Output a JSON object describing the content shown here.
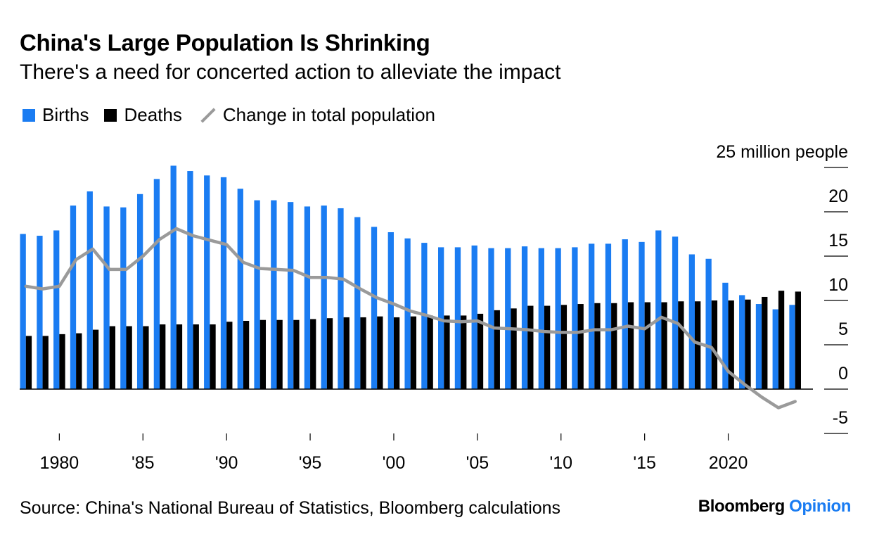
{
  "header": {
    "title": "China's Large Population Is Shrinking",
    "subtitle": "There's a need for concerted action to alleviate the impact"
  },
  "footer": {
    "source": "Source: China's National Bureau of Statistics, Bloomberg calculations",
    "brand_main": "Bloomberg",
    "brand_accent": "Opinion"
  },
  "colors": {
    "births": "#1a7cf2",
    "deaths": "#000000",
    "change": "#9a9a9a"
  },
  "chart_data": {
    "type": "bar",
    "unit_label": "25 million people",
    "ylim": [
      -5,
      25
    ],
    "yticks": [
      -5,
      0,
      5,
      10,
      15,
      20,
      25
    ],
    "ytick_labels": [
      "-5",
      "0",
      "5",
      "10",
      "15",
      "20",
      "25 million people"
    ],
    "xtick_years": [
      1980,
      1985,
      1990,
      1995,
      2000,
      2005,
      2010,
      2015,
      2020
    ],
    "xtick_labels": [
      "1980",
      "'85",
      "'90",
      "'95",
      "'00",
      "'05",
      "'10",
      "'15",
      "2020"
    ],
    "legend": {
      "placement": "top-left"
    },
    "x": [
      1978,
      1979,
      1980,
      1981,
      1982,
      1983,
      1984,
      1985,
      1986,
      1987,
      1988,
      1989,
      1990,
      1991,
      1992,
      1993,
      1994,
      1995,
      1996,
      1997,
      1998,
      1999,
      2000,
      2001,
      2002,
      2003,
      2004,
      2005,
      2006,
      2007,
      2008,
      2009,
      2010,
      2011,
      2012,
      2013,
      2014,
      2015,
      2016,
      2017,
      2018,
      2019,
      2020,
      2021,
      2022,
      2023,
      2024
    ],
    "series": [
      {
        "name": "Births",
        "kind": "bar",
        "values": [
          17.5,
          17.3,
          17.9,
          20.7,
          22.3,
          20.6,
          20.5,
          22.0,
          23.7,
          25.2,
          24.6,
          24.1,
          23.9,
          22.6,
          21.3,
          21.3,
          21.1,
          20.6,
          20.7,
          20.4,
          19.4,
          18.3,
          17.7,
          17.0,
          16.5,
          16.0,
          16.0,
          16.2,
          15.9,
          15.9,
          16.1,
          15.9,
          15.9,
          16.0,
          16.4,
          16.4,
          16.9,
          16.6,
          17.9,
          17.2,
          15.2,
          14.7,
          12.0,
          10.6,
          9.6,
          9.0,
          9.5
        ]
      },
      {
        "name": "Deaths",
        "kind": "bar",
        "values": [
          6.0,
          6.0,
          6.2,
          6.3,
          6.7,
          7.1,
          7.1,
          7.1,
          7.3,
          7.3,
          7.3,
          7.3,
          7.6,
          7.7,
          7.8,
          7.8,
          7.8,
          7.9,
          8.0,
          8.1,
          8.1,
          8.2,
          8.1,
          8.2,
          8.3,
          8.3,
          8.3,
          8.5,
          8.9,
          9.1,
          9.4,
          9.4,
          9.5,
          9.6,
          9.7,
          9.7,
          9.8,
          9.8,
          9.8,
          9.9,
          9.9,
          10.0,
          10.0,
          10.1,
          10.4,
          11.1,
          11.0
        ]
      },
      {
        "name": "Change in total population",
        "kind": "line",
        "values": [
          11.6,
          11.3,
          11.6,
          14.6,
          15.8,
          13.5,
          13.5,
          15.0,
          16.9,
          18.1,
          17.3,
          16.8,
          16.3,
          14.3,
          13.6,
          13.5,
          13.4,
          12.6,
          12.6,
          12.4,
          11.3,
          10.3,
          9.6,
          8.8,
          8.3,
          7.7,
          7.6,
          7.7,
          6.9,
          6.8,
          6.7,
          6.5,
          6.4,
          6.4,
          6.7,
          6.7,
          7.1,
          6.8,
          8.1,
          7.4,
          5.3,
          4.7,
          2.0,
          0.5,
          -0.9,
          -2.1,
          -1.4
        ]
      }
    ]
  }
}
